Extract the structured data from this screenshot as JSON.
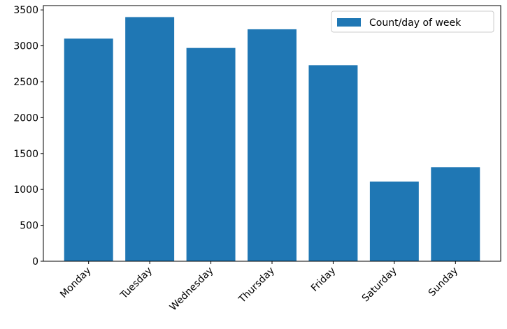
{
  "chart_data": {
    "type": "bar",
    "categories": [
      "Monday",
      "Tuesday",
      "Wednesday",
      "Thursday",
      "Friday",
      "Saturday",
      "Sunday"
    ],
    "series": [
      {
        "name": "Count/day of week",
        "color": "#1f77b4",
        "values": [
          3100,
          3400,
          2970,
          3230,
          2730,
          1110,
          1310
        ]
      }
    ],
    "ylim": [
      0,
      3560
    ],
    "yticks": [
      0,
      500,
      1000,
      1500,
      2000,
      2500,
      3000,
      3500
    ],
    "grid": false,
    "legend": "upper-right"
  }
}
